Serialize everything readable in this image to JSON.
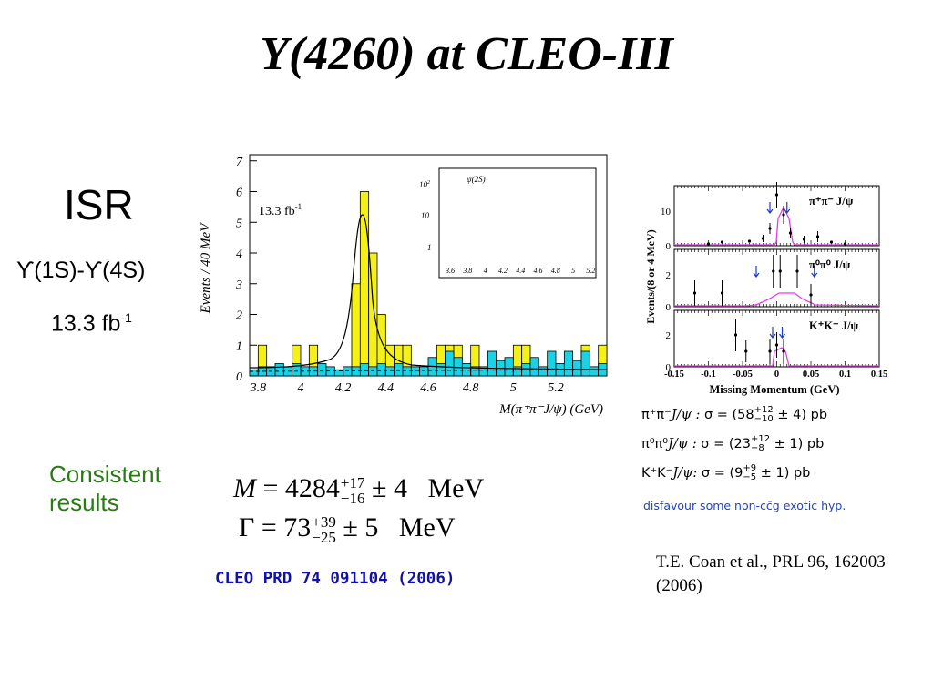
{
  "title": "Y(4260) at CLEO-III",
  "left": {
    "isr": "ISR",
    "upsilon_range": "ϒ(1S)-ϒ(4S)",
    "lumi": "13.3 fb",
    "lumi_sup": "-1",
    "consistent": "Consistent results"
  },
  "fit": {
    "mass_sym": "M",
    "mass_val": "4284",
    "mass_up": "+17",
    "mass_down": "−16",
    "mass_sys": "± 4",
    "width_sym": "Γ",
    "width_val": "73",
    "width_up": "+39",
    "width_down": "−25",
    "width_sys": "± 5",
    "unit": "MeV"
  },
  "reference": "CLEO PRD 74 091104 (2006)",
  "main_plot": {
    "ylabel": "Events / 40 MeV",
    "xlabel": "M(π⁺π⁻J/ψ)  (GeV)",
    "lumi": "13.3 fb",
    "lumi_sup": "-1",
    "y_ticks": [
      "0",
      "1",
      "2",
      "3",
      "4",
      "5",
      "6",
      "7"
    ],
    "x_ticks": [
      "3.8",
      "4",
      "4.2",
      "4.4",
      "4.6",
      "4.8",
      "5",
      "5.2"
    ],
    "inset": {
      "label": "ψ(2S)",
      "y_ticks": [
        "10",
        "10",
        "1"
      ],
      "y_sup": "2",
      "x_ticks": [
        "3.6",
        "3.8",
        "4",
        "4.2",
        "4.4",
        "4.6",
        "4.8",
        "5",
        "5.2"
      ]
    }
  },
  "chart_data": {
    "type": "bar",
    "xlabel": "M(π⁺π⁻J/ψ)  (GeV)",
    "ylabel": "Events / 40 MeV",
    "xlim": [
      3.76,
      5.44
    ],
    "ylim": [
      0,
      7.2
    ],
    "bins": [
      3.78,
      3.82,
      3.86,
      3.9,
      3.94,
      3.98,
      4.02,
      4.06,
      4.1,
      4.14,
      4.18,
      4.22,
      4.26,
      4.3,
      4.34,
      4.38,
      4.42,
      4.46,
      4.5,
      4.54,
      4.58,
      4.62,
      4.66,
      4.7,
      4.74,
      4.78,
      4.82,
      4.86,
      4.9,
      4.94,
      4.98,
      5.02,
      5.06,
      5.1,
      5.14,
      5.18,
      5.22,
      5.26,
      5.3,
      5.34,
      5.38,
      5.42
    ],
    "series": [
      {
        "values": [
          0,
          1,
          0,
          0,
          0,
          1,
          0,
          1,
          0,
          0,
          0,
          0,
          3,
          6,
          4,
          2,
          1,
          1,
          1,
          0,
          0,
          0,
          1,
          1,
          1,
          0,
          1,
          0,
          0,
          0,
          0,
          1,
          1,
          0,
          0,
          0,
          0,
          0,
          0,
          1,
          0,
          1
        ],
        "color": "#f5f016"
      },
      {
        "values": [
          0.2,
          0.3,
          0.3,
          0.4,
          0.3,
          0.4,
          0.3,
          0.3,
          0.4,
          0.3,
          0.2,
          0.3,
          0.3,
          0.4,
          0.3,
          0.4,
          0.3,
          0.4,
          0.3,
          0.3,
          0.3,
          0.6,
          0.4,
          0.8,
          0.6,
          0.4,
          0.3,
          0.3,
          0.8,
          0.5,
          0.6,
          0.3,
          0.4,
          0.6,
          0.3,
          0.8,
          0.4,
          0.8,
          0.5,
          0.8,
          0.3,
          0.4
        ],
        "color": "#19d2e6"
      }
    ]
  },
  "right_plot": {
    "ylabel": "Events/(8 or 4 MeV)",
    "xlabel": "Missing Momentum (GeV)",
    "x_ticks": [
      "-0.15",
      "-0.1",
      "-0.05",
      "0",
      "0.05",
      "0.1",
      "0.15"
    ],
    "panels": [
      {
        "label": "π⁺π⁻ J/ψ",
        "y_ticks": [
          "10",
          "0"
        ]
      },
      {
        "label": "π⁰π⁰ J/ψ",
        "y_ticks": [
          "2",
          "0"
        ]
      },
      {
        "label": "K⁺K⁻ J/ψ",
        "y_ticks": [
          "2",
          "0"
        ]
      }
    ]
  },
  "results": [
    {
      "mode": "π⁺π⁻",
      "rest": "J/ψ : ",
      "sigma": "σ = (58",
      "up": "+12",
      "down": "−10",
      "tail": " ± 4) pb"
    },
    {
      "mode": "π⁰π⁰",
      "rest": "J/ψ : ",
      "sigma": "σ = (23",
      "up": "+12",
      "down": "−8",
      "tail": " ± 1) pb"
    },
    {
      "mode": "K⁺K⁻",
      "rest": "J/ψ: ",
      "sigma": "σ = (9",
      "up": "+9",
      "down": "−5",
      "tail": " ± 1) pb"
    }
  ],
  "disfavour": "disfavour some non-cc̄g exotic hyp.",
  "citation": "T.E. Coan et al., PRL 96, 162003 (2006)",
  "colors": {
    "yellow": "#f5f016",
    "cyan": "#19d2e6",
    "magenta": "#e040e0",
    "blue_arrow": "#1a3cd0",
    "ref_blue": "#1111aa",
    "green": "#2a7a16"
  }
}
